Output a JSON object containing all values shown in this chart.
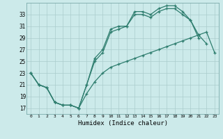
{
  "xlabel": "Humidex (Indice chaleur)",
  "background_color": "#cceaea",
  "grid_color": "#aacccc",
  "line_color": "#2e7d6e",
  "xlim": [
    -0.5,
    23.5
  ],
  "ylim": [
    16.0,
    35.0
  ],
  "yticks": [
    17,
    19,
    21,
    23,
    25,
    27,
    29,
    31,
    33
  ],
  "xticks": [
    0,
    1,
    2,
    3,
    4,
    5,
    6,
    7,
    8,
    9,
    10,
    11,
    12,
    13,
    14,
    15,
    16,
    17,
    18,
    19,
    20,
    21,
    22,
    23
  ],
  "line1_x": [
    0,
    1,
    2,
    3,
    4,
    5,
    6,
    7,
    8,
    9,
    10,
    11,
    12,
    13,
    14,
    15,
    16,
    17,
    18,
    19,
    20,
    21
  ],
  "line1_y": [
    23.0,
    21.0,
    20.5,
    18.0,
    17.5,
    17.5,
    17.0,
    21.0,
    25.5,
    27.0,
    30.5,
    31.0,
    31.0,
    33.5,
    33.5,
    33.0,
    34.0,
    34.5,
    34.5,
    33.5,
    32.0,
    29.0
  ],
  "line2_x": [
    0,
    1,
    2,
    3,
    4,
    5,
    6,
    7,
    8,
    9,
    10,
    11,
    12,
    13,
    14,
    15,
    16,
    17,
    18,
    19,
    20,
    21,
    22
  ],
  "line2_y": [
    23.0,
    21.0,
    20.5,
    18.0,
    17.5,
    17.5,
    17.0,
    21.0,
    25.0,
    26.5,
    30.0,
    30.5,
    31.0,
    33.0,
    33.0,
    32.5,
    33.5,
    34.0,
    34.0,
    33.0,
    32.0,
    29.5,
    28.0
  ],
  "line3_x": [
    0,
    1,
    2,
    3,
    4,
    5,
    6,
    7,
    8,
    9,
    10,
    11,
    12,
    13,
    14,
    15,
    16,
    17,
    18,
    19,
    20,
    21,
    22,
    23
  ],
  "line3_y": [
    23.0,
    21.0,
    20.5,
    18.0,
    17.5,
    17.5,
    17.0,
    19.5,
    21.5,
    23.0,
    24.0,
    24.5,
    25.0,
    25.5,
    26.0,
    26.5,
    27.0,
    27.5,
    28.0,
    28.5,
    29.0,
    29.5,
    30.0,
    26.5
  ]
}
